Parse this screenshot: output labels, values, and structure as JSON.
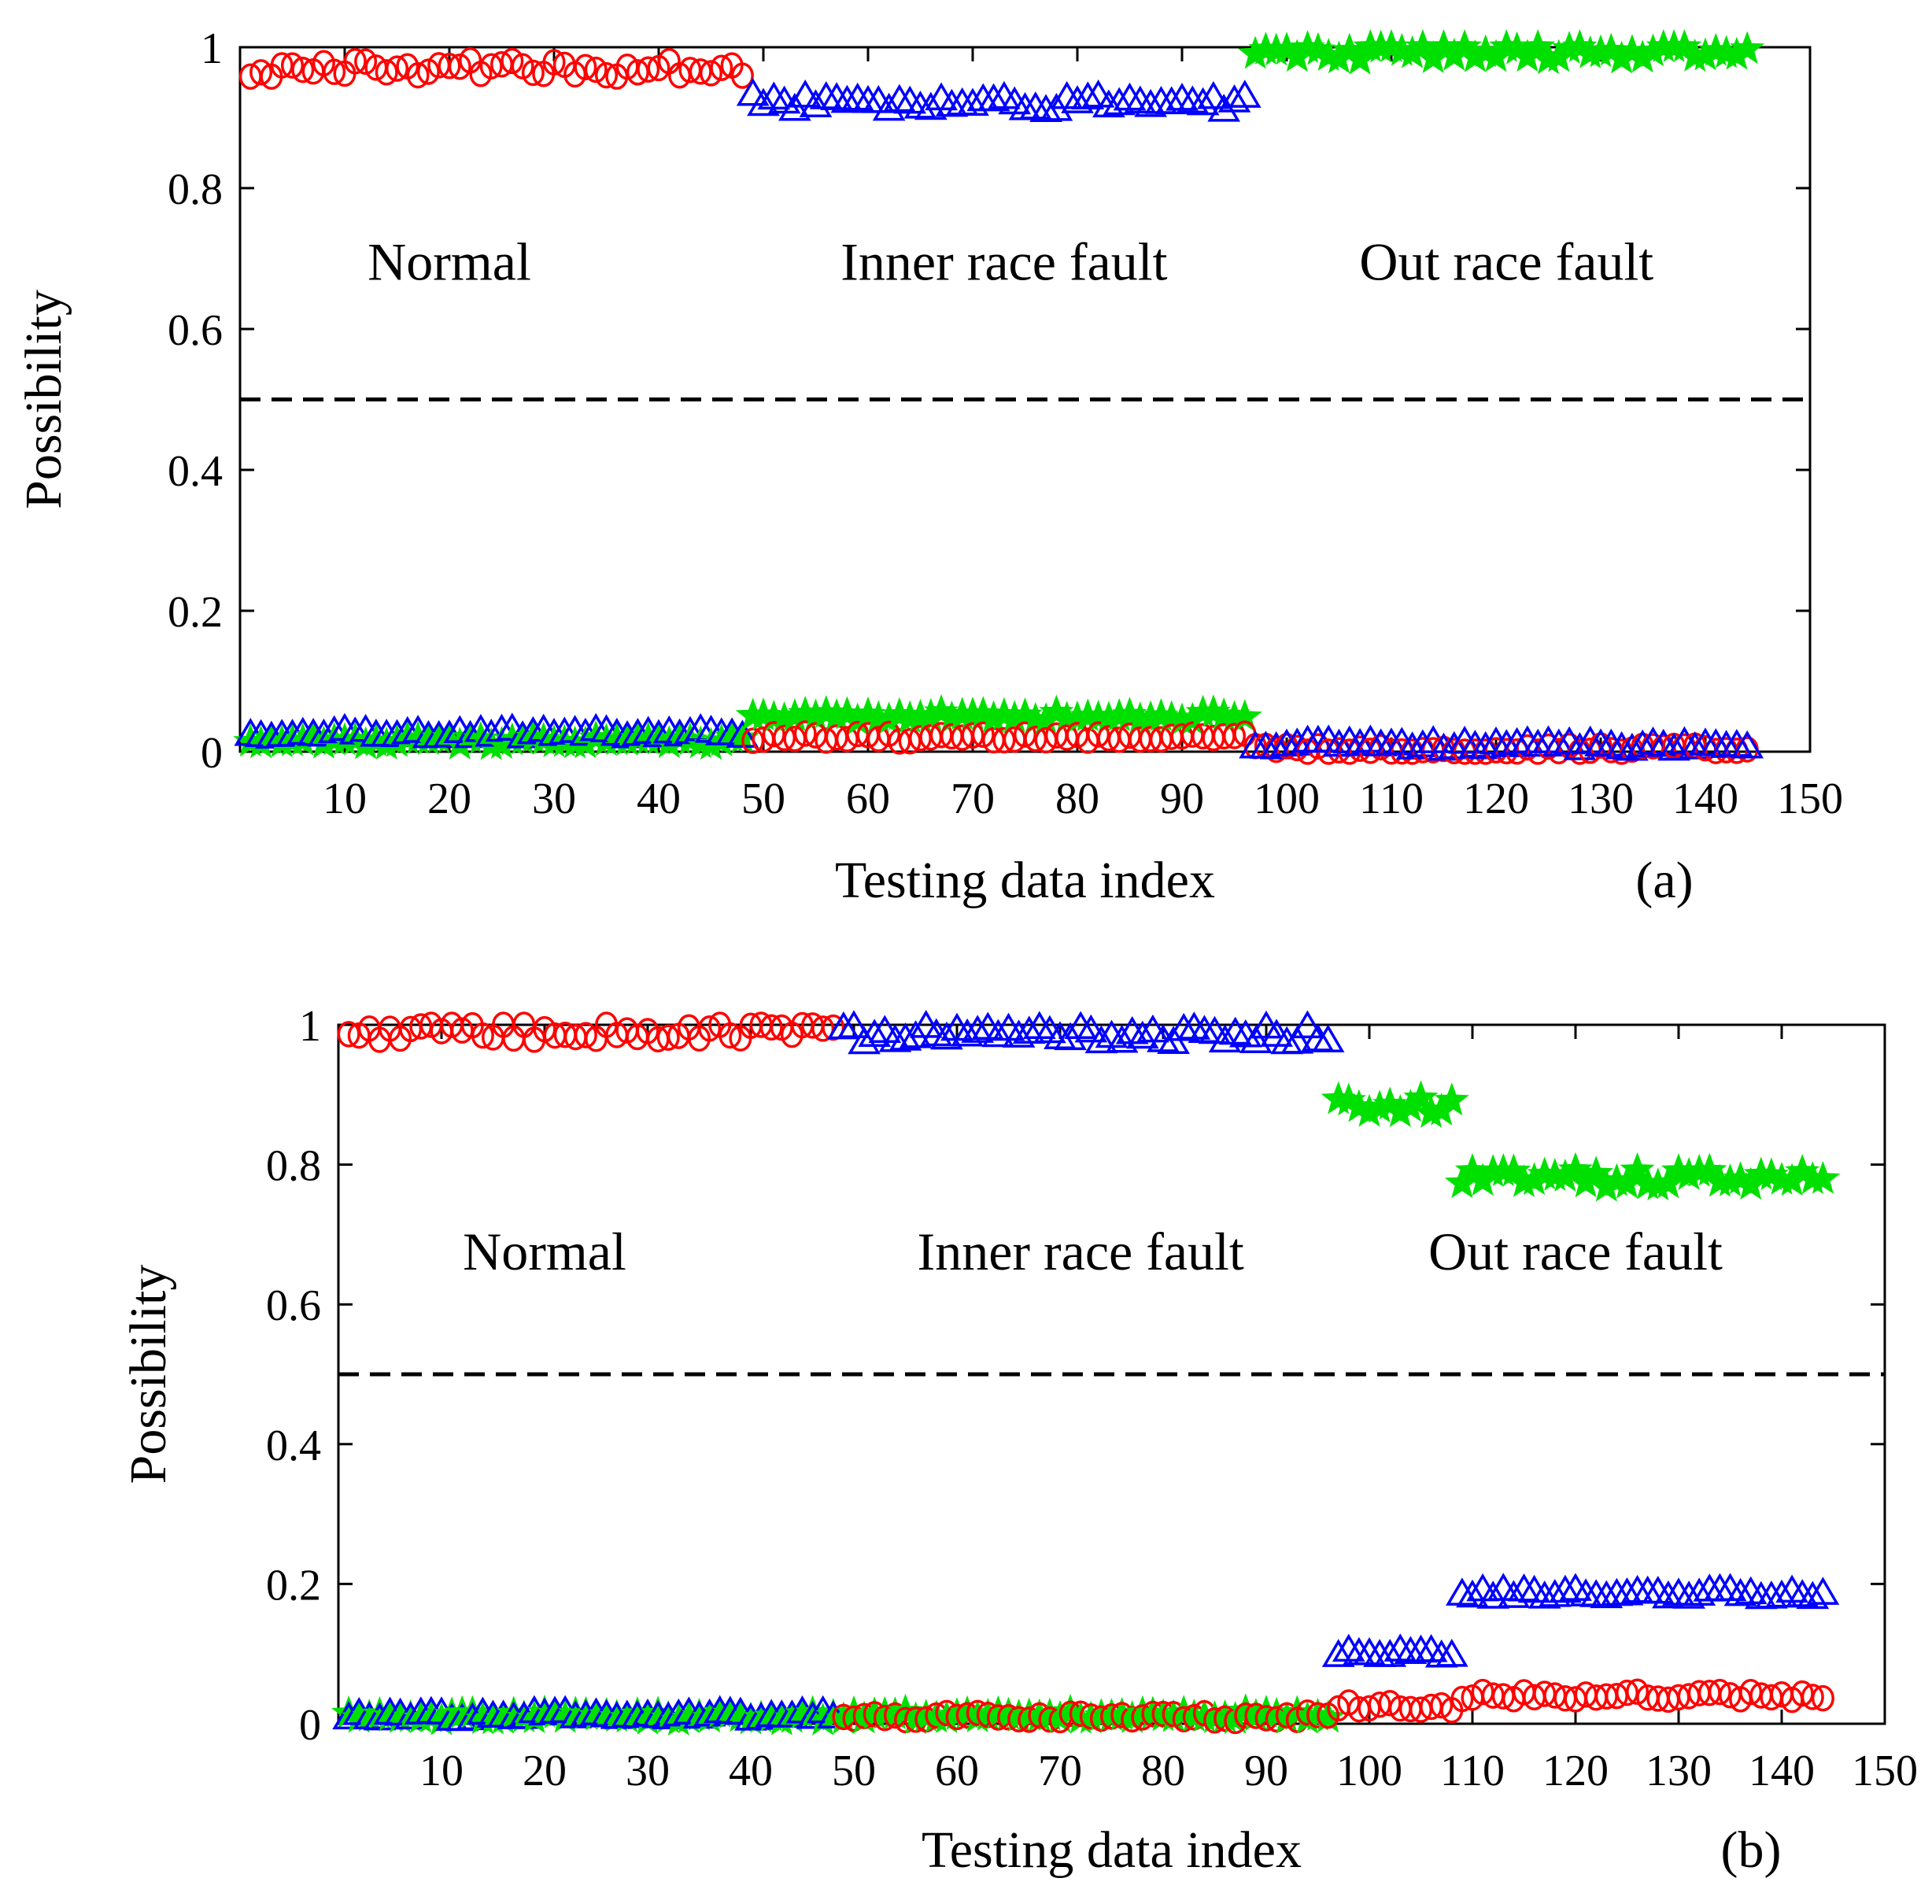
{
  "chart_data": [
    {
      "type": "scatter",
      "panel_label": "(a)",
      "xlabel": "Testing data index",
      "ylabel": "Possibility",
      "xlim": [
        0,
        150
      ],
      "ylim": [
        0,
        1
      ],
      "xticks": [
        10,
        20,
        30,
        40,
        50,
        60,
        70,
        80,
        90,
        100,
        110,
        120,
        130,
        140,
        150
      ],
      "yticks": [
        0,
        0.2,
        0.4,
        0.6,
        0.8,
        1
      ],
      "ytick_labels": [
        "0",
        "0.2",
        "0.4",
        "0.6",
        "0.8",
        "1"
      ],
      "threshold": 0.5,
      "region_labels": [
        {
          "text": "Normal",
          "x": 20,
          "y": 0.67
        },
        {
          "text": "Inner  race fault",
          "x": 73,
          "y": 0.67
        },
        {
          "text": "Out race fault",
          "x": 121,
          "y": 0.67
        }
      ],
      "groups": [
        {
          "start": 1,
          "end": 48,
          "red": 0.97,
          "blue": 0.025,
          "green": 0.015
        },
        {
          "start": 49,
          "end": 96,
          "red": 0.02,
          "blue": 0.92,
          "green": 0.05
        },
        {
          "start": 97,
          "end": 144,
          "red": 0.003,
          "blue": 0.008,
          "green": 0.993
        }
      ],
      "markers": {
        "red": {
          "shape": "circle",
          "color": "#ff0000"
        },
        "blue": {
          "shape": "triangle",
          "color": "#0000ff"
        },
        "green": {
          "shape": "star",
          "color": "#00e000"
        }
      }
    },
    {
      "type": "scatter",
      "panel_label": "(b)",
      "xlabel": "Testing data index",
      "ylabel": "Possibility",
      "xlim": [
        0,
        150
      ],
      "ylim": [
        0,
        1
      ],
      "xticks": [
        10,
        20,
        30,
        40,
        50,
        60,
        70,
        80,
        90,
        100,
        110,
        120,
        130,
        140,
        150
      ],
      "yticks": [
        0,
        0.2,
        0.4,
        0.6,
        0.8,
        1
      ],
      "ytick_labels": [
        "0",
        "0.2",
        "0.4",
        "0.6",
        "0.8",
        "1"
      ],
      "threshold": 0.5,
      "region_labels": [
        {
          "text": "Normal",
          "x": 20,
          "y": 0.65
        },
        {
          "text": "Inner  race fault",
          "x": 72,
          "y": 0.65
        },
        {
          "text": "Out race fault",
          "x": 120,
          "y": 0.65
        }
      ],
      "groups": [
        {
          "start": 1,
          "end": 48,
          "red": 0.99,
          "blue": 0.01,
          "green": 0.01
        },
        {
          "start": 49,
          "end": 96,
          "red": 0.01,
          "blue": 0.985,
          "green": 0.012
        },
        {
          "start": 97,
          "end": 108,
          "red": 0.025,
          "blue": 0.1,
          "green": 0.885
        },
        {
          "start": 109,
          "end": 144,
          "red": 0.04,
          "blue": 0.185,
          "green": 0.78
        }
      ],
      "markers": {
        "red": {
          "shape": "circle",
          "color": "#ff0000"
        },
        "blue": {
          "shape": "triangle",
          "color": "#0000ff"
        },
        "green": {
          "shape": "star",
          "color": "#00e000"
        }
      }
    }
  ]
}
